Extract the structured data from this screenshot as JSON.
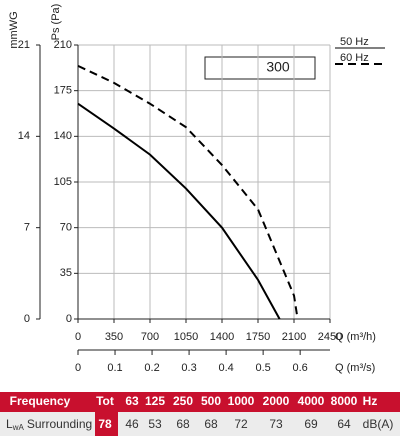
{
  "chart_data": {
    "type": "line",
    "box_label": "300",
    "x_label": "Q (m³/h)",
    "x2_label": "Q (m³/s)",
    "y_label": "Ps (Pa)",
    "y2_label": "mmWG",
    "xlim": [
      0,
      2450
    ],
    "xticks": [
      0,
      350,
      700,
      1050,
      1400,
      1750,
      2100,
      2450
    ],
    "x2lim": [
      0,
      0.6806
    ],
    "x2ticks": [
      0,
      0.1,
      0.2,
      0.3,
      0.4,
      0.5,
      0.6
    ],
    "ylim": [
      0,
      210
    ],
    "yticks": [
      0,
      35,
      70,
      105,
      140,
      175,
      210
    ],
    "y2lim": [
      0,
      21
    ],
    "y2ticks": [
      0,
      7,
      14,
      21
    ],
    "grid": true,
    "series": [
      {
        "name": "50 Hz",
        "color": "#000000",
        "dash": false,
        "x": [
          0,
          350,
          700,
          1050,
          1400,
          1750,
          1960
        ],
        "values": [
          165,
          146,
          126,
          100,
          70,
          30,
          0
        ]
      },
      {
        "name": "60 Hz",
        "color": "#000000",
        "dash": true,
        "x": [
          0,
          350,
          700,
          1050,
          1400,
          1750,
          2100,
          2135
        ],
        "values": [
          194,
          181,
          165,
          147,
          118,
          84,
          18,
          0
        ]
      }
    ]
  },
  "table": {
    "header": [
      "Frequency",
      "Tot",
      "63",
      "125",
      "250",
      "500",
      "1000",
      "2000",
      "4000",
      "8000",
      "Hz"
    ],
    "row_label": {
      "symbol": "L",
      "subscript": "wA",
      "text": "Surrounding"
    },
    "row": [
      78,
      46,
      53,
      68,
      68,
      72,
      73,
      69,
      64
    ],
    "unit": "dB(A)"
  }
}
